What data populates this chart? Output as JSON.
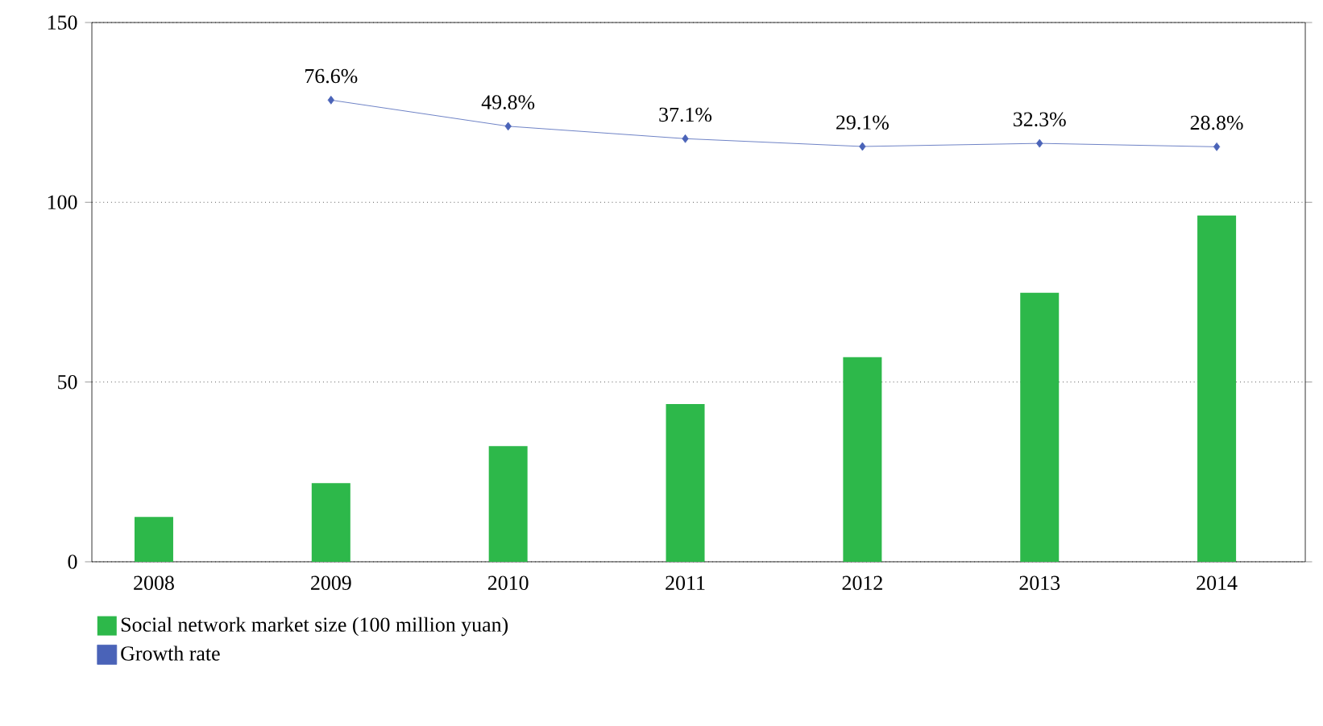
{
  "chart_data": {
    "type": "bar",
    "categories": [
      "2008",
      "2009",
      "2010",
      "2011",
      "2012",
      "2013",
      "2014"
    ],
    "series": [
      {
        "name": "Social network market size (100 million yuan)",
        "color": "#2db84a",
        "values": [
          12.5,
          21.9,
          32.2,
          43.9,
          56.9,
          74.8,
          96.3
        ]
      },
      {
        "name": "Growth rate",
        "type": "line",
        "color": "#4a63b8",
        "axis": "y2",
        "values": [
          null,
          76.6,
          49.8,
          37.1,
          29.1,
          32.3,
          28.8
        ],
        "value_labels": [
          null,
          "76.6%",
          "49.8%",
          "37.1%",
          "29.1%",
          "32.3%",
          "28.8%"
        ],
        "marker": "diamond"
      }
    ],
    "ylim": [
      0,
      150
    ],
    "y2lim": [
      -396,
      156
    ],
    "yticks": [
      0,
      50,
      100,
      150
    ],
    "grid": "y",
    "legend": "bottom"
  }
}
